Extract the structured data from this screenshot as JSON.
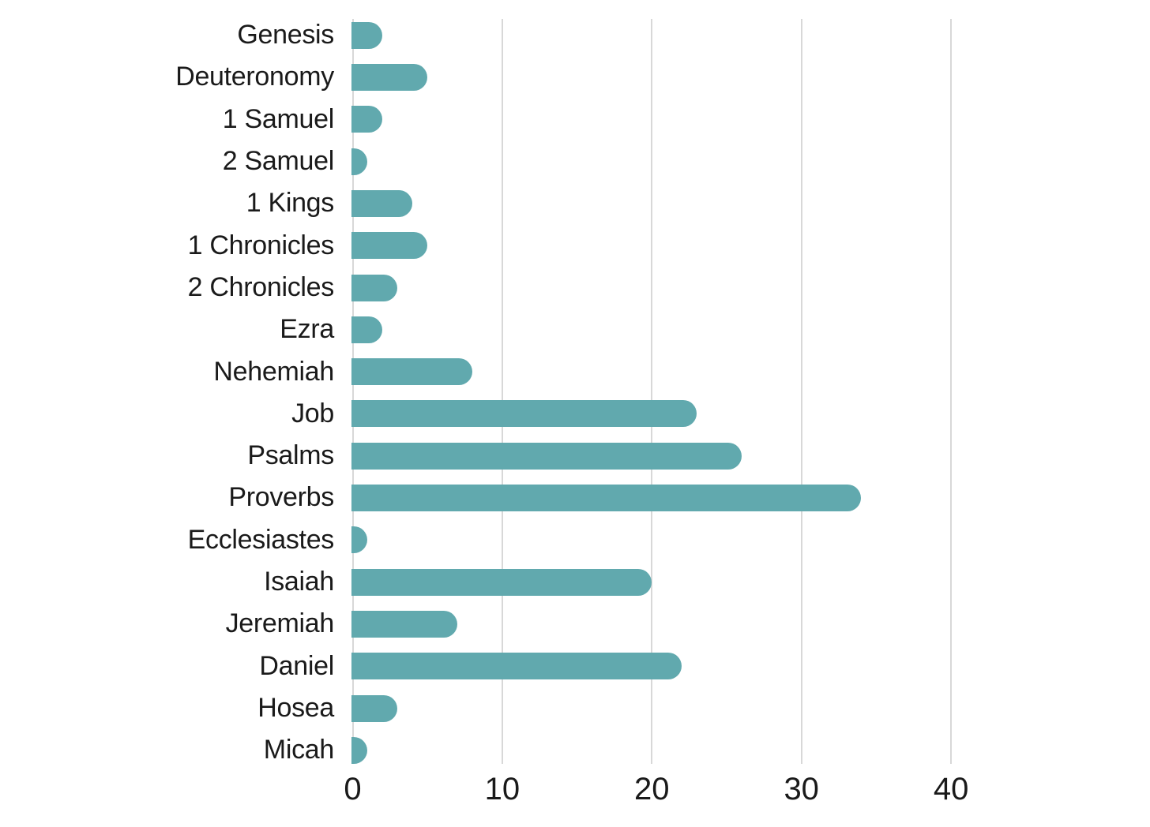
{
  "chart_data": {
    "type": "bar",
    "orientation": "horizontal",
    "title": "",
    "categories": [
      "Genesis",
      "Deuteronomy",
      "1 Samuel",
      "2 Samuel",
      "1 Kings",
      "1 Chronicles",
      "2 Chronicles",
      "Ezra",
      "Nehemiah",
      "Job",
      "Psalms",
      "Proverbs",
      "Ecclesiastes",
      "Isaiah",
      "Jeremiah",
      "Daniel",
      "Hosea",
      "Micah"
    ],
    "values": [
      2,
      5,
      2,
      1,
      4,
      5,
      3,
      2,
      8,
      23,
      26,
      34,
      1,
      20,
      7,
      22,
      3,
      1
    ],
    "x_ticks": [
      "0",
      "10",
      "20",
      "30",
      "40"
    ],
    "x_tick_values": [
      0,
      10,
      20,
      30,
      40
    ],
    "xlim": [
      0,
      40
    ],
    "xlabel": "",
    "ylabel": "",
    "grid": "vertical-gridlines-only",
    "legend": "none",
    "colors": {
      "bar": "#61A9AE",
      "gridline": "#D8D8D8",
      "text": "#1A1A1A",
      "background": "#FFFFFF"
    }
  }
}
